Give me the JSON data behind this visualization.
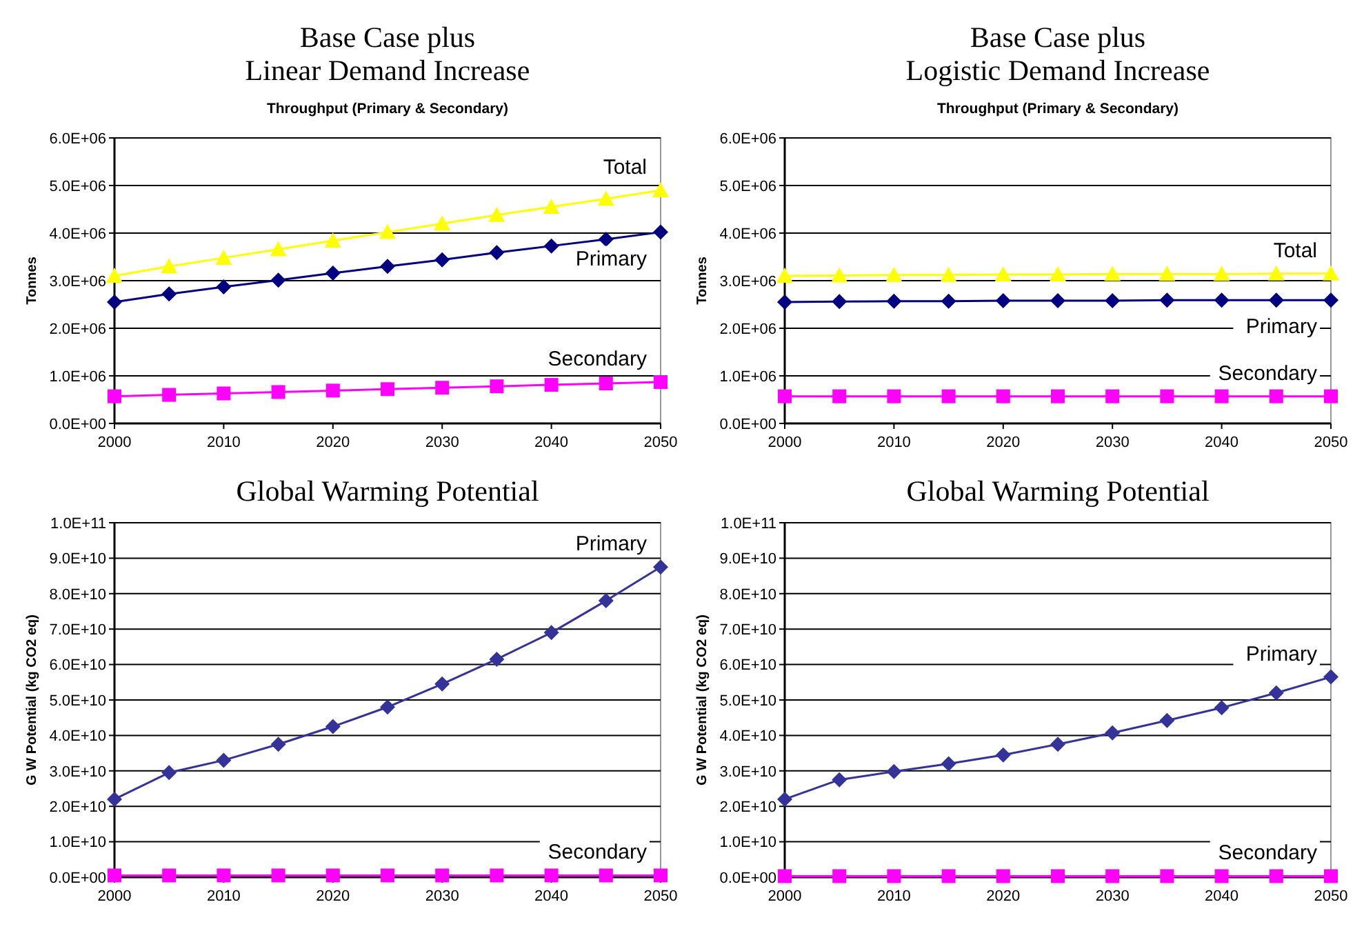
{
  "chart_data": [
    {
      "type": "line",
      "title": "Base Case plus\nLinear Demand Increase",
      "subtitle": "Throughput (Primary & Secondary)",
      "ylabel": "Tonnes",
      "x": [
        2000,
        2005,
        2010,
        2015,
        2020,
        2025,
        2030,
        2035,
        2040,
        2045,
        2050
      ],
      "xlim": [
        2000,
        2050
      ],
      "xticks": [
        2000,
        2010,
        2020,
        2030,
        2040,
        2050
      ],
      "ylim": [
        0,
        6000000
      ],
      "yticks": [
        {
          "value": 0,
          "label": "0.0E+00"
        },
        {
          "value": 1000000,
          "label": "1.0E+06"
        },
        {
          "value": 2000000,
          "label": "2.0E+06"
        },
        {
          "value": 3000000,
          "label": "3.0E+06"
        },
        {
          "value": 4000000,
          "label": "4.0E+06"
        },
        {
          "value": 5000000,
          "label": "5.0E+06"
        },
        {
          "value": 6000000,
          "label": "6.0E+06"
        }
      ],
      "grid": "y",
      "series": [
        {
          "name": "Total",
          "color": "#ffff00",
          "marker": "triangle",
          "values": [
            3100000,
            3300000,
            3480000,
            3660000,
            3840000,
            4020000,
            4200000,
            4380000,
            4550000,
            4720000,
            4900000
          ]
        },
        {
          "name": "Primary",
          "color": "#000080",
          "marker": "diamond",
          "values": [
            2550000,
            2720000,
            2870000,
            3010000,
            3160000,
            3300000,
            3440000,
            3590000,
            3730000,
            3870000,
            4020000
          ]
        },
        {
          "name": "Secondary",
          "color": "#ff00ff",
          "marker": "square",
          "values": [
            570000,
            600000,
            630000,
            660000,
            690000,
            720000,
            750000,
            780000,
            810000,
            840000,
            870000
          ]
        }
      ]
    },
    {
      "type": "line",
      "title": "Base Case plus\nLogistic Demand Increase",
      "subtitle": "Throughput (Primary & Secondary)",
      "ylabel": "Tonnes",
      "x": [
        2000,
        2005,
        2010,
        2015,
        2020,
        2025,
        2030,
        2035,
        2040,
        2045,
        2050
      ],
      "xlim": [
        2000,
        2050
      ],
      "xticks": [
        2000,
        2010,
        2020,
        2030,
        2040,
        2050
      ],
      "ylim": [
        0,
        6000000
      ],
      "yticks": [
        {
          "value": 0,
          "label": "0.0E+00"
        },
        {
          "value": 1000000,
          "label": "1.0E+06"
        },
        {
          "value": 2000000,
          "label": "2.0E+06"
        },
        {
          "value": 3000000,
          "label": "3.0E+06"
        },
        {
          "value": 4000000,
          "label": "4.0E+06"
        },
        {
          "value": 5000000,
          "label": "5.0E+06"
        },
        {
          "value": 6000000,
          "label": "6.0E+06"
        }
      ],
      "grid": "y",
      "series": [
        {
          "name": "Total",
          "color": "#ffff00",
          "marker": "triangle",
          "values": [
            3100000,
            3110000,
            3120000,
            3120000,
            3130000,
            3130000,
            3140000,
            3140000,
            3140000,
            3150000,
            3150000
          ]
        },
        {
          "name": "Primary",
          "color": "#000080",
          "marker": "diamond",
          "values": [
            2550000,
            2560000,
            2570000,
            2570000,
            2580000,
            2580000,
            2580000,
            2590000,
            2590000,
            2590000,
            2590000
          ]
        },
        {
          "name": "Secondary",
          "color": "#ff00ff",
          "marker": "square",
          "values": [
            570000,
            570000,
            570000,
            570000,
            570000,
            570000,
            570000,
            570000,
            570000,
            570000,
            570000
          ]
        }
      ]
    },
    {
      "type": "line",
      "title": "Global Warming Potential",
      "ylabel": "G W Potential (kg CO2 eq)",
      "x": [
        2000,
        2005,
        2010,
        2015,
        2020,
        2025,
        2030,
        2035,
        2040,
        2045,
        2050
      ],
      "xlim": [
        2000,
        2050
      ],
      "xticks": [
        2000,
        2010,
        2020,
        2030,
        2040,
        2050
      ],
      "ylim": [
        0,
        100000000000
      ],
      "yticks": [
        {
          "value": 0,
          "label": "0.0E+00"
        },
        {
          "value": 10000000000,
          "label": "1.0E+10"
        },
        {
          "value": 20000000000,
          "label": "2.0E+10"
        },
        {
          "value": 30000000000,
          "label": "3.0E+10"
        },
        {
          "value": 40000000000,
          "label": "4.0E+10"
        },
        {
          "value": 50000000000,
          "label": "5.0E+10"
        },
        {
          "value": 60000000000,
          "label": "6.0E+10"
        },
        {
          "value": 70000000000,
          "label": "7.0E+10"
        },
        {
          "value": 80000000000,
          "label": "8.0E+10"
        },
        {
          "value": 90000000000,
          "label": "9.0E+10"
        },
        {
          "value": 100000000000,
          "label": "1.0E+11"
        }
      ],
      "grid": "y",
      "series": [
        {
          "name": "Primary",
          "color": "#333399",
          "marker": "diamond",
          "values": [
            22000000000,
            29500000000,
            33000000000,
            37500000000,
            42500000000,
            48000000000,
            54500000000,
            61500000000,
            69000000000,
            78000000000,
            87500000000
          ]
        },
        {
          "name": "Secondary",
          "color": "#ff00ff",
          "marker": "square",
          "values": [
            500000000,
            500000000,
            500000000,
            500000000,
            500000000,
            500000000,
            500000000,
            500000000,
            500000000,
            500000000,
            500000000
          ]
        }
      ]
    },
    {
      "type": "line",
      "title": "Global Warming Potential",
      "ylabel": "G W Potential (kg CO2 eq)",
      "x": [
        2000,
        2005,
        2010,
        2015,
        2020,
        2025,
        2030,
        2035,
        2040,
        2045,
        2050
      ],
      "xlim": [
        2000,
        2050
      ],
      "xticks": [
        2000,
        2010,
        2020,
        2030,
        2040,
        2050
      ],
      "ylim": [
        0,
        100000000000
      ],
      "yticks": [
        {
          "value": 0,
          "label": "0.0E+00"
        },
        {
          "value": 10000000000,
          "label": "1.0E+10"
        },
        {
          "value": 20000000000,
          "label": "2.0E+10"
        },
        {
          "value": 30000000000,
          "label": "3.0E+10"
        },
        {
          "value": 40000000000,
          "label": "4.0E+10"
        },
        {
          "value": 50000000000,
          "label": "5.0E+10"
        },
        {
          "value": 60000000000,
          "label": "6.0E+10"
        },
        {
          "value": 70000000000,
          "label": "7.0E+10"
        },
        {
          "value": 80000000000,
          "label": "8.0E+10"
        },
        {
          "value": 90000000000,
          "label": "9.0E+10"
        },
        {
          "value": 100000000000,
          "label": "1.0E+11"
        }
      ],
      "grid": "y",
      "series": [
        {
          "name": "Primary",
          "color": "#333399",
          "marker": "diamond",
          "values": [
            22000000000,
            27500000000,
            29800000000,
            32000000000,
            34500000000,
            37500000000,
            40700000000,
            44200000000,
            47800000000,
            52000000000,
            56500000000
          ]
        },
        {
          "name": "Secondary",
          "color": "#ff00ff",
          "marker": "square",
          "values": [
            300000000,
            300000000,
            300000000,
            300000000,
            300000000,
            300000000,
            300000000,
            300000000,
            300000000,
            300000000,
            300000000
          ]
        }
      ]
    }
  ]
}
